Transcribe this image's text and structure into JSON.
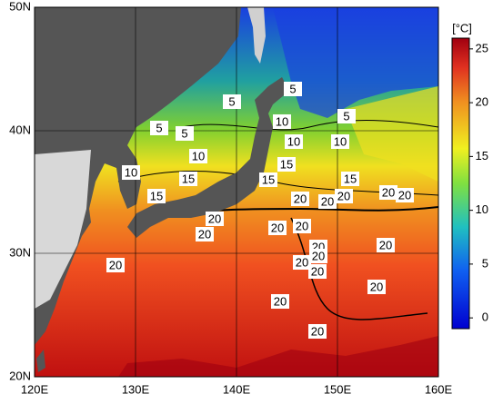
{
  "map": {
    "lat_labels": [
      "50N",
      "40N",
      "30N",
      "20N"
    ],
    "lon_labels": [
      "120E",
      "130E",
      "140E",
      "150E",
      "160E"
    ],
    "contour_labels": [
      "5",
      "5",
      "5",
      "5",
      "5",
      "10",
      "10",
      "10",
      "10",
      "10",
      "15",
      "15",
      "15",
      "15",
      "15",
      "20",
      "20",
      "20",
      "20",
      "20",
      "20",
      "20",
      "20",
      "20",
      "20",
      "20",
      "20",
      "20",
      "20",
      "20",
      "20",
      "20",
      "20"
    ]
  },
  "colorbar": {
    "unit": "[°C]",
    "range": [
      -1,
      26
    ],
    "ticks": [
      25,
      20,
      15,
      10,
      5,
      0
    ]
  }
}
